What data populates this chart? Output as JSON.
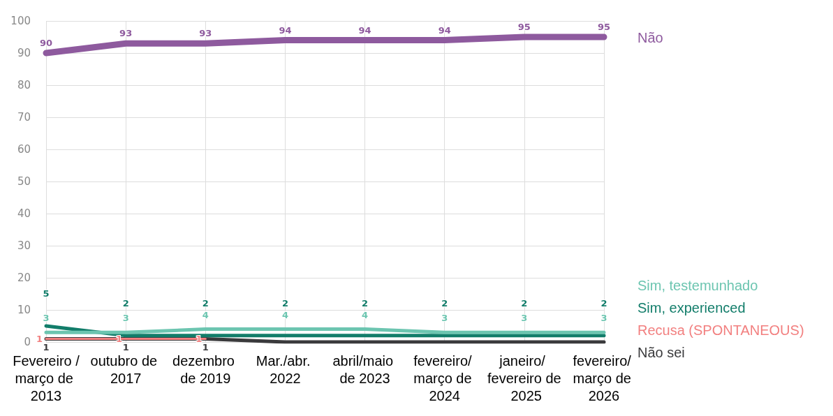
{
  "chart_data": {
    "type": "line",
    "categories": [
      "Fevereiro /março de 2013",
      "outubro de 2017",
      "dezembro de 2019",
      "Mar./abr. 2022",
      "abril/maio de 2023",
      "fevereiro/ março de 2024",
      "janeiro/ fevereiro de 2025",
      "fevereiro/ março de 2026"
    ],
    "series": [
      {
        "name": "Não",
        "color": "#8e5a9e",
        "values": [
          90,
          93,
          93,
          94,
          94,
          94,
          95,
          95
        ],
        "value_labels": [
          "90",
          "93",
          "93",
          "94",
          "94",
          "94",
          "95",
          "95"
        ]
      },
      {
        "name": "Sim, testemunhado",
        "color": "#6cc5b0",
        "values": [
          3,
          3,
          4,
          4,
          4,
          3,
          3,
          3
        ],
        "value_labels": [
          "3",
          "3",
          "4",
          "4",
          "4",
          "3",
          "3",
          "3"
        ]
      },
      {
        "name": "Sim, experienced",
        "color": "#127d6a",
        "values": [
          5,
          2,
          2,
          2,
          2,
          2,
          2,
          2
        ],
        "value_labels": [
          "5",
          "2",
          "2",
          "2",
          "2",
          "2",
          "2",
          "2"
        ]
      },
      {
        "name": "Não sei",
        "color": "#3a3a3c",
        "values": [
          1,
          1,
          1,
          0,
          0,
          0,
          0,
          0
        ],
        "value_labels": [
          "1",
          "1",
          "1",
          null,
          null,
          null,
          null,
          null
        ]
      },
      {
        "name": "Recusa (SPONTANEOUS)",
        "color": "#f28080",
        "values": [
          1,
          1,
          1,
          null,
          null,
          null,
          null,
          null
        ],
        "value_labels": [
          "1",
          "1",
          "1",
          null,
          null,
          null,
          null,
          null
        ]
      }
    ],
    "ylim": [
      0,
      100
    ],
    "yticks": [
      0,
      10,
      20,
      30,
      40,
      50,
      60,
      70,
      80,
      90,
      100
    ],
    "grid": true,
    "legend": "right",
    "marker": "none",
    "line_style": "solid"
  }
}
